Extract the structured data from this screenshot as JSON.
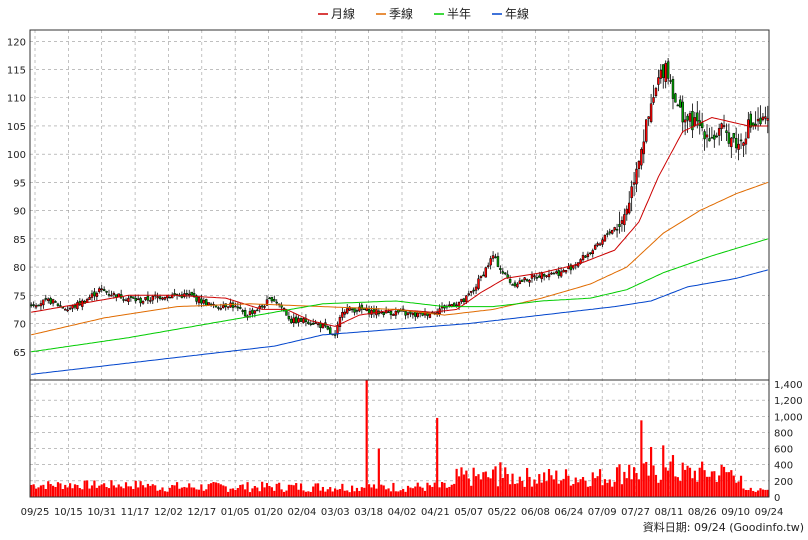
{
  "legend": [
    {
      "label": "月線",
      "color": "#cc0000"
    },
    {
      "label": "季線",
      "color": "#e06b00"
    },
    {
      "label": "半年",
      "color": "#00cc00"
    },
    {
      "label": "年線",
      "color": "#0044cc"
    }
  ],
  "source_label": "資料日期: 09/24 (Goodinfo.tw)",
  "colors": {
    "up": "#ff0000",
    "down": "#00a000",
    "volume": "#ff0000",
    "wick": "#000000",
    "grid": "#999999"
  },
  "chart_data": {
    "type": "candlestick",
    "price_axis": {
      "min": 60,
      "max": 122,
      "ticks": [
        65,
        70,
        75,
        80,
        85,
        90,
        95,
        100,
        105,
        110,
        115,
        120
      ]
    },
    "volume_axis": {
      "min": 0,
      "max": 1450,
      "ticks": [
        "0",
        "200",
        "400",
        "600",
        "800",
        "1,000",
        "1,200",
        "1,400"
      ]
    },
    "x_labels": [
      "09/25",
      "10/15",
      "10/31",
      "11/17",
      "12/02",
      "12/17",
      "01/05",
      "01/20",
      "02/04",
      "03/03",
      "03/18",
      "04/02",
      "04/21",
      "05/07",
      "05/22",
      "06/08",
      "06/24",
      "07/09",
      "07/27",
      "08/11",
      "08/26",
      "09/10",
      "09/24"
    ],
    "close_anchors": [
      [
        0,
        73.5
      ],
      [
        8,
        74
      ],
      [
        15,
        72.5
      ],
      [
        22,
        74
      ],
      [
        28,
        76
      ],
      [
        35,
        75
      ],
      [
        45,
        74
      ],
      [
        55,
        75
      ],
      [
        65,
        75
      ],
      [
        75,
        73
      ],
      [
        82,
        73.5
      ],
      [
        88,
        71.5
      ],
      [
        95,
        73
      ],
      [
        99,
        74.5
      ],
      [
        102,
        73.5
      ],
      [
        107,
        70.5
      ],
      [
        114,
        70.5
      ],
      [
        120,
        69.5
      ],
      [
        125,
        67.5
      ],
      [
        128,
        72.5
      ],
      [
        135,
        72.5
      ],
      [
        142,
        72
      ],
      [
        150,
        72
      ],
      [
        158,
        71.5
      ],
      [
        165,
        72
      ],
      [
        170,
        73
      ],
      [
        178,
        74
      ],
      [
        182,
        76
      ],
      [
        186,
        79
      ],
      [
        190,
        82
      ],
      [
        194,
        79
      ],
      [
        198,
        77
      ],
      [
        205,
        78
      ],
      [
        212,
        79
      ],
      [
        218,
        79
      ],
      [
        222,
        80
      ],
      [
        228,
        82
      ],
      [
        234,
        84
      ],
      [
        237,
        86
      ],
      [
        240,
        87
      ],
      [
        243,
        88
      ],
      [
        246,
        92
      ],
      [
        249,
        98
      ],
      [
        252,
        103
      ],
      [
        255,
        108
      ],
      [
        258,
        113
      ],
      [
        261,
        116
      ],
      [
        263,
        113
      ],
      [
        266,
        108
      ],
      [
        270,
        106
      ],
      [
        275,
        105
      ],
      [
        280,
        103
      ],
      [
        284,
        104
      ],
      [
        288,
        103
      ],
      [
        291,
        101.5
      ],
      [
        295,
        105
      ],
      [
        300,
        105.5
      ],
      [
        303,
        105.5
      ]
    ],
    "ma_month": [
      [
        0,
        72
      ],
      [
        20,
        73.5
      ],
      [
        40,
        75
      ],
      [
        60,
        75
      ],
      [
        80,
        74.5
      ],
      [
        95,
        72.5
      ],
      [
        105,
        72.5
      ],
      [
        115,
        70.5
      ],
      [
        125,
        69.5
      ],
      [
        135,
        71.5
      ],
      [
        150,
        72.5
      ],
      [
        165,
        72
      ],
      [
        175,
        72.5
      ],
      [
        185,
        75.5
      ],
      [
        195,
        78
      ],
      [
        210,
        79
      ],
      [
        225,
        80.5
      ],
      [
        240,
        83
      ],
      [
        250,
        88
      ],
      [
        258,
        96
      ],
      [
        268,
        104
      ],
      [
        280,
        106.5
      ],
      [
        295,
        105
      ],
      [
        303,
        105
      ]
    ],
    "ma_quarter": [
      [
        0,
        68
      ],
      [
        30,
        71
      ],
      [
        60,
        73
      ],
      [
        90,
        73.5
      ],
      [
        120,
        73
      ],
      [
        150,
        72.5
      ],
      [
        170,
        71.5
      ],
      [
        190,
        72.5
      ],
      [
        210,
        74.5
      ],
      [
        230,
        77
      ],
      [
        245,
        80
      ],
      [
        260,
        86
      ],
      [
        275,
        90
      ],
      [
        290,
        93
      ],
      [
        303,
        95
      ]
    ],
    "ma_half": [
      [
        0,
        65
      ],
      [
        40,
        67.5
      ],
      [
        80,
        70.5
      ],
      [
        120,
        73.5
      ],
      [
        150,
        74
      ],
      [
        170,
        73
      ],
      [
        190,
        73
      ],
      [
        210,
        74
      ],
      [
        230,
        74.5
      ],
      [
        245,
        76
      ],
      [
        260,
        79
      ],
      [
        280,
        82
      ],
      [
        303,
        85
      ]
    ],
    "ma_year": [
      [
        0,
        61
      ],
      [
        50,
        63.5
      ],
      [
        100,
        66
      ],
      [
        120,
        68
      ],
      [
        150,
        69
      ],
      [
        180,
        70
      ],
      [
        210,
        71.5
      ],
      [
        240,
        73
      ],
      [
        255,
        74
      ],
      [
        270,
        76.5
      ],
      [
        290,
        78
      ],
      [
        303,
        79.5
      ]
    ],
    "volume_spikes": [
      [
        138,
        1450
      ],
      [
        143,
        600
      ],
      [
        167,
        980
      ],
      [
        191,
        380
      ],
      [
        193,
        430
      ],
      [
        246,
        400
      ],
      [
        251,
        950
      ],
      [
        255,
        620
      ],
      [
        260,
        640
      ],
      [
        264,
        520
      ]
    ]
  }
}
